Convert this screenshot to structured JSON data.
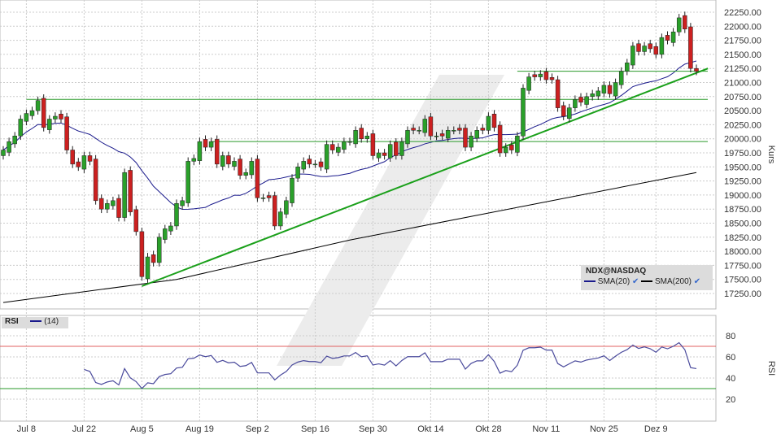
{
  "chart_data": {
    "type": "candlestick",
    "symbol": "NDX@NASDAQ",
    "yaxis_title": "Kurs",
    "ylim": [
      17000,
      22400
    ],
    "yticks": [
      17250,
      17500,
      17750,
      18000,
      18250,
      18500,
      18750,
      19000,
      19250,
      19500,
      19750,
      20000,
      20250,
      20500,
      20750,
      21000,
      21250,
      21500,
      21750,
      22000,
      22250
    ],
    "xticks": [
      {
        "label": "Jul 8",
        "index": 4
      },
      {
        "label": "Jul 22",
        "index": 14
      },
      {
        "label": "Aug 5",
        "index": 24
      },
      {
        "label": "Aug 19",
        "index": 34
      },
      {
        "label": "Sep 2",
        "index": 44
      },
      {
        "label": "Sep 16",
        "index": 54
      },
      {
        "label": "Sep 30",
        "index": 64
      },
      {
        "label": "Okt 14",
        "index": 74
      },
      {
        "label": "Okt 28",
        "index": 84
      },
      {
        "label": "Nov 11",
        "index": 94
      },
      {
        "label": "Nov 25",
        "index": 104
      },
      {
        "label": "Dez 9",
        "index": 113
      }
    ],
    "closes": [
      19800,
      19950,
      20050,
      20350,
      20450,
      20500,
      20680,
      20200,
      20350,
      20400,
      20350,
      19800,
      19550,
      19500,
      19700,
      19600,
      18900,
      18750,
      18850,
      18900,
      18600,
      19400,
      18700,
      18350,
      17550,
      17900,
      17800,
      18250,
      18400,
      18450,
      18850,
      18900,
      19600,
      19650,
      19950,
      19850,
      19950,
      19550,
      19700,
      19550,
      19600,
      19350,
      19400,
      19600,
      18950,
      18950,
      18950,
      18450,
      18700,
      18900,
      19300,
      19500,
      19600,
      19550,
      19550,
      19500,
      19900,
      19800,
      19850,
      19950,
      19950,
      20150,
      20000,
      20050,
      19700,
      19750,
      19700,
      19900,
      19700,
      19950,
      20150,
      20150,
      20150,
      20350,
      20050,
      20050,
      20050,
      20150,
      20150,
      20150,
      19850,
      20050,
      20150,
      20150,
      20400,
      20200,
      19750,
      19850,
      19800,
      20050,
      20900,
      21100,
      21100,
      21150,
      21050,
      21050,
      20550,
      20400,
      20550,
      20700,
      20650,
      20750,
      20800,
      20850,
      20950,
      20800,
      21000,
      21200,
      21350,
      21650,
      21550,
      21650,
      21600,
      21500,
      21800,
      21750,
      21900,
      22150,
      21950,
      21250,
      21200
    ],
    "series": [
      {
        "name": "SMA(20)",
        "color": "#1a1a8c"
      },
      {
        "name": "SMA(200)",
        "color": "#000000",
        "points": [
          [
            0,
            17090
          ],
          [
            30,
            17500
          ],
          [
            60,
            18200
          ],
          [
            90,
            18800
          ],
          [
            120,
            19400
          ]
        ]
      }
    ],
    "support_lines": [
      {
        "value": 20700,
        "from": 4,
        "color": "#2a9a2a"
      },
      {
        "value": 19950,
        "from": 36,
        "color": "#2a9a2a"
      },
      {
        "value": 21200,
        "from": 89,
        "color": "#2a9a2a"
      }
    ],
    "trendline": {
      "from": [
        24,
        17380
      ],
      "to": [
        122,
        21250
      ],
      "color": "#1aa01a"
    },
    "rsi": {
      "label": "RSI",
      "period_label": "(14)",
      "period": 14,
      "ylim": [
        10,
        95
      ],
      "yticks": [
        20,
        40,
        60,
        80
      ],
      "overbought": 70,
      "oversold": 30
    }
  },
  "legend": {
    "title": "NDX@NASDAQ",
    "sma20": "SMA(20)",
    "sma200": "SMA(200)"
  }
}
